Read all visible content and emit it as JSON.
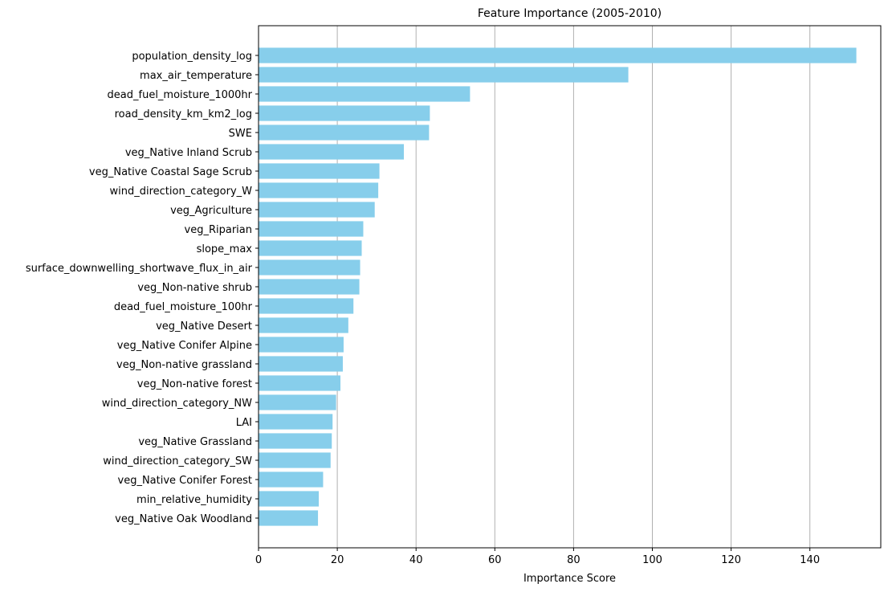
{
  "chart_data": {
    "type": "bar",
    "orientation": "horizontal",
    "title": "Feature Importance (2005-2010)",
    "xlabel": "Importance Score",
    "ylabel": "",
    "xlim": [
      0,
      158
    ],
    "xticks": [
      0,
      20,
      40,
      60,
      80,
      100,
      120,
      140
    ],
    "grid": "x",
    "bar_color": "#87CEEB",
    "grid_color": "#b0b0b0",
    "categories": [
      "population_density_log",
      "max_air_temperature",
      "dead_fuel_moisture_1000hr",
      "road_density_km_km2_log",
      "SWE",
      "veg_Native Inland Scrub",
      "veg_Native Coastal Sage Scrub",
      "wind_direction_category_W",
      "veg_Agriculture",
      "veg_Riparian",
      "slope_max",
      "surface_downwelling_shortwave_flux_in_air",
      "veg_Non-native shrub",
      "dead_fuel_moisture_100hr",
      "veg_Native Desert",
      "veg_Native Conifer Alpine",
      "veg_Non-native grassland",
      "veg_Non-native forest",
      "wind_direction_category_NW",
      "LAI",
      "veg_Native Grassland",
      "wind_direction_category_SW",
      "veg_Native Conifer Forest",
      "min_relative_humidity",
      "veg_Native Oak Woodland"
    ],
    "values": [
      151.8,
      93.9,
      53.7,
      43.5,
      43.3,
      36.9,
      30.7,
      30.4,
      29.5,
      26.6,
      26.2,
      25.8,
      25.6,
      24.1,
      22.8,
      21.6,
      21.4,
      20.8,
      19.7,
      18.8,
      18.6,
      18.3,
      16.4,
      15.3,
      15.1
    ]
  }
}
